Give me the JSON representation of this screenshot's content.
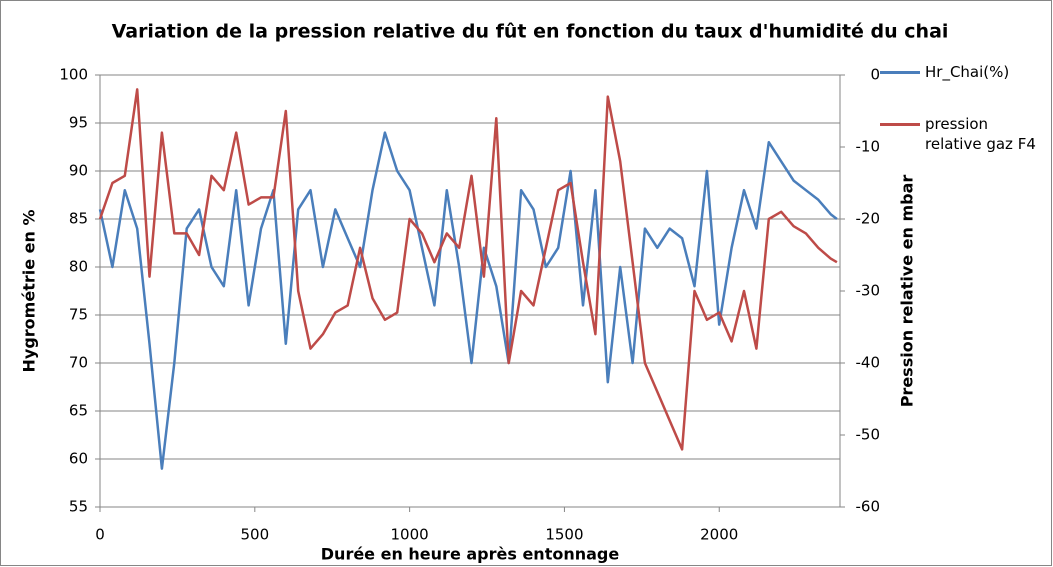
{
  "chart_data": {
    "type": "line",
    "title": "Variation de la pression relative du fût en fonction du taux d'humidité du chai",
    "x_label": "Durée en heure après entonnage",
    "y_label": "Hygrométrie en %",
    "y2_label": "Pression relative en mbar",
    "xlim": [
      0,
      2390
    ],
    "xticks": [
      0,
      500,
      1000,
      1500,
      2000
    ],
    "ylim": [
      55,
      100
    ],
    "yticks": [
      55,
      60,
      65,
      70,
      75,
      80,
      85,
      90,
      95,
      100
    ],
    "y2lim": [
      -60,
      0
    ],
    "y2ticks": [
      -60,
      -50,
      -40,
      -30,
      -20,
      -10,
      0
    ],
    "grid": true,
    "legend": "right",
    "x": [
      0,
      40,
      80,
      120,
      160,
      200,
      240,
      280,
      320,
      360,
      400,
      440,
      480,
      520,
      560,
      600,
      640,
      680,
      720,
      760,
      800,
      840,
      880,
      920,
      960,
      1000,
      1040,
      1080,
      1120,
      1160,
      1200,
      1240,
      1280,
      1320,
      1360,
      1400,
      1440,
      1480,
      1520,
      1560,
      1600,
      1640,
      1680,
      1720,
      1760,
      1800,
      1840,
      1880,
      1920,
      1960,
      2000,
      2040,
      2080,
      2120,
      2160,
      2200,
      2240,
      2280,
      2320,
      2360,
      2380
    ],
    "series": [
      {
        "name": "Hr_Chai(%)",
        "color": "#4a7ebb",
        "axis": "y",
        "values": [
          86,
          80,
          88,
          84,
          72,
          59,
          70,
          84,
          86,
          80,
          78,
          88,
          76,
          84,
          88,
          72,
          86,
          88,
          80,
          86,
          83,
          80,
          88,
          94,
          90,
          88,
          82,
          76,
          88,
          80,
          70,
          82,
          78,
          70,
          88,
          86,
          80,
          82,
          90,
          76,
          88,
          68,
          80,
          70,
          84,
          82,
          84,
          83,
          78,
          90,
          74,
          82,
          88,
          84,
          93,
          91,
          89,
          88,
          87,
          85.5,
          85
        ]
      },
      {
        "name": "pression relative gaz F4",
        "color": "#be4b48",
        "axis": "y2",
        "values": [
          -20,
          -15,
          -14,
          -2,
          -28,
          -8,
          -22,
          -22,
          -25,
          -14,
          -16,
          -8,
          -18,
          -17,
          -17,
          -5,
          -30,
          -38,
          -36,
          -33,
          -32,
          -24,
          -31,
          -34,
          -33,
          -20,
          -22,
          -26,
          -22,
          -24,
          -14,
          -28,
          -6,
          -40,
          -30,
          -32,
          -24,
          -16,
          -15,
          -26,
          -36,
          -3,
          -12,
          -26,
          -40,
          -44,
          -48,
          -52,
          -30,
          -34,
          -33,
          -37,
          -30,
          -38,
          -20,
          -19,
          -21,
          -22,
          -24,
          -25.5,
          -26
        ]
      }
    ]
  }
}
